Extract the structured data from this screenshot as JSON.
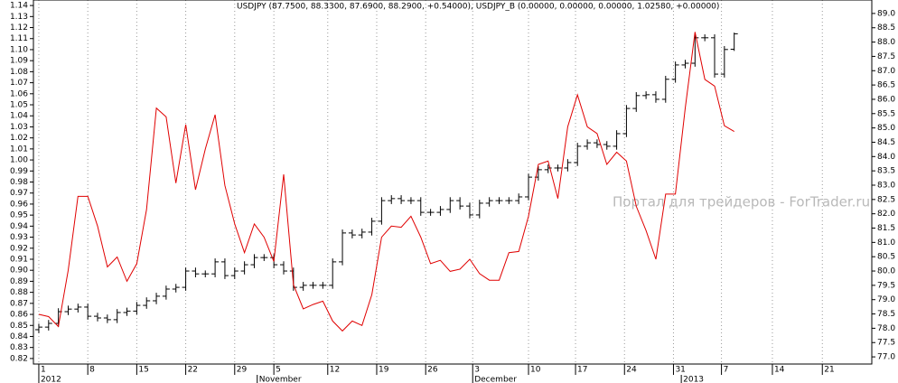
{
  "chart_data": {
    "type": "ohlc",
    "title": "USDJPY (87.7500, 88.3300, 87.6900, 88.2900, +0.54000), USDJPY_B (0.00000, 0.00000, 0.00000, 1.02580, +0.00000)",
    "watermark": "Портал для трейдеров - ForTrader.ru",
    "xlim": [
      -0.55,
      85.05
    ],
    "xticks": [
      {
        "value": 0,
        "label": "1"
      },
      {
        "value": 5,
        "label": "8"
      },
      {
        "value": 10,
        "label": "15"
      },
      {
        "value": 15,
        "label": "22"
      },
      {
        "value": 20,
        "label": "29"
      },
      {
        "value": 24,
        "label": "5"
      },
      {
        "value": 29.5,
        "label": "12"
      },
      {
        "value": 34.5,
        "label": "19"
      },
      {
        "value": 39.5,
        "label": "26"
      },
      {
        "value": 44.3,
        "label": "3"
      },
      {
        "value": 50,
        "label": "10"
      },
      {
        "value": 54.8,
        "label": "17"
      },
      {
        "value": 59.8,
        "label": "24"
      },
      {
        "value": 64.8,
        "label": "31"
      },
      {
        "value": 69.7,
        "label": "7"
      },
      {
        "value": 74.9,
        "label": "14"
      },
      {
        "value": 80,
        "label": "21"
      }
    ],
    "x_period_labels": [
      {
        "value": 0,
        "label": "2012"
      },
      {
        "value": 22.3,
        "label": "November"
      },
      {
        "value": 44.3,
        "label": "December"
      },
      {
        "value": 65.6,
        "label": "2013"
      }
    ],
    "grid": true,
    "ylim": [
      0.815,
      1.145
    ],
    "yticks": [
      1.14,
      1.13,
      1.12,
      1.11,
      {
        "value": 1.1,
        "label": "1.10"
      },
      1.09,
      1.08,
      1.07,
      1.06,
      1.05,
      1.04,
      1.03,
      1.02,
      1.01,
      {
        "value": 1.0,
        "label": "1.00"
      },
      0.99,
      0.98,
      0.97,
      0.96,
      0.95,
      0.94,
      0.93,
      0.92,
      0.91,
      {
        "value": 0.9,
        "label": "0.90"
      },
      0.89,
      0.88,
      0.87,
      0.86,
      0.85,
      0.84,
      0.83,
      0.82
    ],
    "y2lim": [
      76.75,
      89.47
    ],
    "y2ticks": [
      {
        "value": 89,
        "label": "89.0"
      },
      {
        "value": 88.5,
        "label": "88.5"
      },
      {
        "value": 88,
        "label": "88.0"
      },
      {
        "value": 87.5,
        "label": "87.5"
      },
      {
        "value": 87,
        "label": "87.0"
      },
      {
        "value": 86.5,
        "label": "86.5"
      },
      {
        "value": 86,
        "label": "86.0"
      },
      {
        "value": 85.5,
        "label": "85.5"
      },
      {
        "value": 85,
        "label": "85.0"
      },
      {
        "value": 84.5,
        "label": "84.5"
      },
      {
        "value": 84,
        "label": "84.0"
      },
      {
        "value": 83.5,
        "label": "83.5"
      },
      {
        "value": 83,
        "label": "83.0"
      },
      {
        "value": 82.5,
        "label": "82.5"
      },
      {
        "value": 82,
        "label": "82.0"
      },
      {
        "value": 81.5,
        "label": "81.5"
      },
      {
        "value": 81,
        "label": "81.0"
      },
      {
        "value": 80.5,
        "label": "80.5"
      },
      {
        "value": 80,
        "label": "80.0"
      },
      {
        "value": 79.5,
        "label": "79.5"
      },
      {
        "value": 79,
        "label": "79.0"
      },
      {
        "value": 78.5,
        "label": "78.5"
      },
      {
        "value": 78,
        "label": "78.0"
      },
      {
        "value": 77.5,
        "label": "77.5"
      },
      {
        "value": 77,
        "label": "77.0"
      }
    ],
    "series": [
      {
        "type": "ohlc",
        "axis": "y2",
        "color": "#000000",
        "open": [
          77.95,
          78.04,
          78.17,
          78.58,
          78.67,
          78.74,
          78.42,
          78.36,
          78.3,
          78.55,
          78.6,
          78.8,
          78.96,
          79.12,
          79.37,
          79.43,
          80.0,
          79.9,
          79.9,
          80.32,
          79.84,
          80.0,
          80.22,
          80.47,
          80.47,
          80.22,
          80.0,
          79.43,
          79.5,
          79.5,
          79.5,
          80.32,
          81.33,
          81.26,
          81.36,
          81.74,
          82.46,
          82.53,
          82.46,
          82.46,
          82.05,
          82.05,
          82.15,
          82.46,
          82.27,
          81.96,
          82.37,
          82.46,
          82.46,
          82.46,
          82.59,
          83.28,
          83.54,
          83.6,
          83.6,
          83.79,
          84.36,
          84.48,
          84.42,
          84.36,
          84.8,
          85.68,
          86.13,
          86.16,
          86.0,
          86.7,
          87.2,
          87.26,
          88.15,
          88.15,
          86.88,
          87.75
        ],
        "high": [
          78.16,
          78.29,
          78.7,
          78.79,
          78.86,
          78.86,
          78.54,
          78.48,
          78.67,
          78.72,
          78.92,
          79.08,
          79.24,
          79.49,
          79.55,
          80.12,
          80.12,
          80.02,
          80.44,
          80.44,
          80.12,
          80.34,
          80.59,
          80.59,
          80.59,
          80.34,
          80.12,
          79.62,
          79.62,
          79.62,
          80.44,
          81.45,
          81.45,
          81.48,
          81.86,
          82.58,
          82.65,
          82.65,
          82.58,
          82.58,
          82.17,
          82.27,
          82.58,
          82.58,
          82.39,
          82.49,
          82.58,
          82.58,
          82.58,
          82.71,
          83.4,
          83.66,
          83.72,
          83.72,
          83.91,
          84.48,
          84.6,
          84.6,
          84.54,
          84.92,
          85.8,
          86.25,
          86.28,
          86.28,
          86.82,
          87.32,
          87.38,
          88.27,
          88.27,
          88.27,
          87.86,
          88.33
        ],
        "low": [
          77.83,
          77.92,
          78.05,
          78.46,
          78.55,
          78.3,
          78.24,
          78.18,
          78.18,
          78.43,
          78.48,
          78.68,
          78.84,
          79.0,
          79.25,
          79.31,
          79.78,
          79.78,
          79.78,
          79.72,
          79.72,
          79.88,
          80.1,
          80.35,
          80.1,
          79.88,
          79.31,
          79.31,
          79.38,
          79.38,
          79.38,
          80.2,
          81.14,
          81.14,
          81.24,
          81.62,
          82.34,
          82.34,
          82.34,
          81.93,
          81.93,
          81.93,
          82.03,
          82.15,
          81.84,
          81.84,
          82.25,
          82.34,
          82.34,
          82.34,
          82.47,
          83.16,
          83.42,
          83.48,
          83.48,
          83.67,
          84.24,
          84.3,
          84.24,
          84.24,
          84.68,
          85.56,
          86.01,
          85.88,
          85.88,
          86.58,
          87.08,
          87.14,
          88.03,
          86.76,
          86.76,
          87.69
        ],
        "close": [
          78.04,
          78.17,
          78.58,
          78.67,
          78.74,
          78.42,
          78.36,
          78.3,
          78.55,
          78.6,
          78.8,
          78.96,
          79.12,
          79.37,
          79.43,
          80.0,
          79.9,
          79.9,
          80.32,
          79.84,
          80.0,
          80.22,
          80.47,
          80.47,
          80.22,
          80.0,
          79.43,
          79.5,
          79.5,
          79.5,
          80.32,
          81.33,
          81.26,
          81.36,
          81.74,
          82.46,
          82.53,
          82.46,
          82.46,
          82.05,
          82.05,
          82.15,
          82.46,
          82.27,
          81.96,
          82.37,
          82.46,
          82.46,
          82.46,
          82.59,
          83.28,
          83.54,
          83.6,
          83.6,
          83.79,
          84.36,
          84.48,
          84.42,
          84.36,
          84.8,
          85.68,
          86.13,
          86.16,
          86.0,
          86.7,
          87.2,
          87.26,
          88.15,
          88.15,
          86.88,
          87.74,
          88.29
        ]
      },
      {
        "type": "line",
        "axis": "y",
        "color": "#e00000",
        "values": [
          0.86,
          0.858,
          0.849,
          0.9,
          0.967,
          0.967,
          0.94,
          0.903,
          0.912,
          0.89,
          0.906,
          0.955,
          1.047,
          1.039,
          0.979,
          1.032,
          0.973,
          1.01,
          1.041,
          0.977,
          0.942,
          0.916,
          0.942,
          0.93,
          0.908,
          0.987,
          0.887,
          0.865,
          0.869,
          0.872,
          0.854,
          0.845,
          0.854,
          0.85,
          0.878,
          0.93,
          0.94,
          0.939,
          0.949,
          0.93,
          0.906,
          0.909,
          0.899,
          0.901,
          0.91,
          0.897,
          0.891,
          0.891,
          0.916,
          0.917,
          0.949,
          0.996,
          0.999,
          0.965,
          1.03,
          1.059,
          1.03,
          1.024,
          0.996,
          1.007,
          0.999,
          0.958,
          0.936,
          0.91,
          0.969,
          0.969,
          1.047,
          1.116,
          1.073,
          1.067,
          1.031,
          1.0258
        ]
      }
    ]
  }
}
